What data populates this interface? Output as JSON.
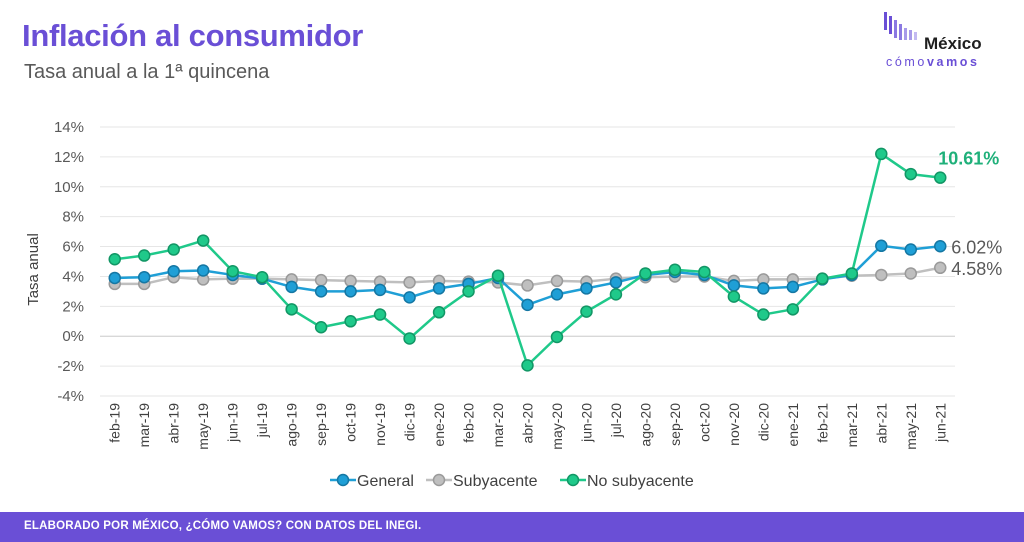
{
  "header": {
    "title": "Inflación al consumidor",
    "subtitle": "Tasa anual a la 1ª quincena"
  },
  "logo": {
    "main": "México",
    "sub_light": "cómo",
    "sub_bold": "vamos"
  },
  "footer": {
    "text": "ELABORADO POR MÉXICO, ¿CÓMO VAMOS? CON DATOS DEL INEGI."
  },
  "colors": {
    "accent": "#6a4fd6",
    "general": "#1f9fd6",
    "subyacente": "#bfbfbf",
    "no_subyacente": "#1fc98a"
  },
  "chart_data": {
    "type": "line",
    "ylabel": "Tasa anual",
    "xlabel": "",
    "ylim": [
      -4,
      14
    ],
    "yticks": [
      -4,
      -2,
      0,
      2,
      4,
      6,
      8,
      10,
      12,
      14
    ],
    "ytick_labels": [
      "-4%",
      "-2%",
      "0%",
      "2%",
      "4%",
      "6%",
      "8%",
      "10%",
      "12%",
      "14%"
    ],
    "grid": true,
    "legend_position": "bottom",
    "categories": [
      "feb-19",
      "mar-19",
      "abr-19",
      "may-19",
      "jun-19",
      "jul-19",
      "ago-19",
      "sep-19",
      "oct-19",
      "nov-19",
      "dic-19",
      "ene-20",
      "feb-20",
      "mar-20",
      "abr-20",
      "may-20",
      "jun-20",
      "jul-20",
      "ago-20",
      "sep-20",
      "oct-20",
      "nov-20",
      "dic-20",
      "ene-21",
      "feb-21",
      "mar-21",
      "abr-21",
      "may-21",
      "jun-21"
    ],
    "series": [
      {
        "name": "General",
        "color": "#1f9fd6",
        "values": [
          3.9,
          3.95,
          4.35,
          4.4,
          4.1,
          3.85,
          3.3,
          3.0,
          3.0,
          3.1,
          2.6,
          3.2,
          3.5,
          3.9,
          2.1,
          2.8,
          3.2,
          3.6,
          4.1,
          4.3,
          4.1,
          3.4,
          3.2,
          3.3,
          3.8,
          4.1,
          6.05,
          5.8,
          6.02
        ],
        "end_label": "6.02%"
      },
      {
        "name": "Subyacente",
        "color": "#bfbfbf",
        "values": [
          3.5,
          3.5,
          3.95,
          3.8,
          3.85,
          3.85,
          3.8,
          3.75,
          3.7,
          3.65,
          3.6,
          3.7,
          3.65,
          3.6,
          3.4,
          3.7,
          3.65,
          3.85,
          3.95,
          4.0,
          4.0,
          3.7,
          3.8,
          3.8,
          3.85,
          4.05,
          4.1,
          4.2,
          4.58
        ],
        "end_label": "4.58%"
      },
      {
        "name": "No subyacente",
        "color": "#1fc98a",
        "values": [
          5.15,
          5.4,
          5.8,
          6.4,
          4.35,
          3.95,
          1.8,
          0.6,
          1.0,
          1.45,
          -0.15,
          1.6,
          3.0,
          4.05,
          -1.95,
          -0.05,
          1.65,
          2.8,
          4.2,
          4.45,
          4.3,
          2.65,
          1.45,
          1.8,
          3.85,
          4.2,
          12.2,
          10.85,
          10.61
        ],
        "end_label": "10.61%"
      }
    ]
  }
}
